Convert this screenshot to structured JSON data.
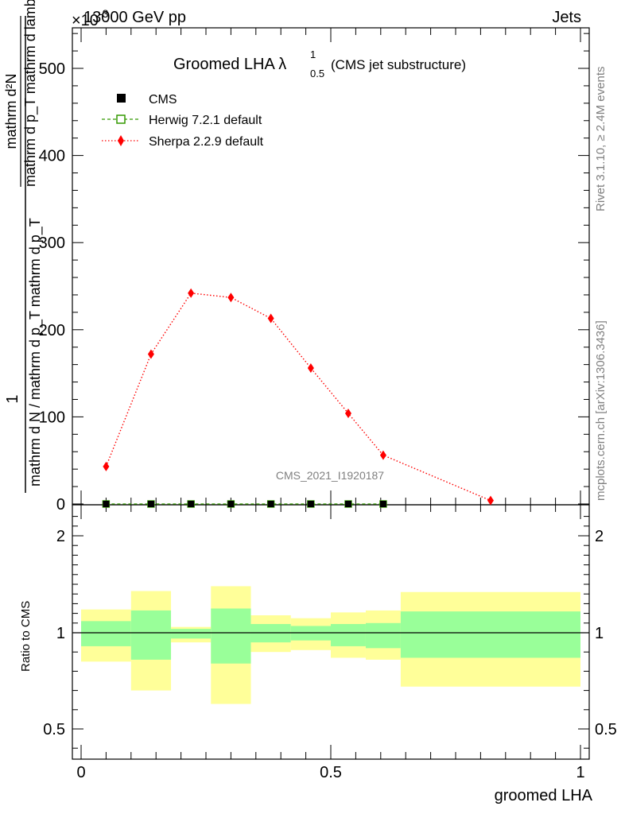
{
  "header": {
    "left": "13000 GeV pp",
    "right": "Jets",
    "scale_factor": "×10",
    "scale_exp": "-3"
  },
  "side_notes": {
    "rivet": "Rivet 3.1.10, ≥ 2.4M events",
    "mcplots": "mcplots.cern.ch [arXiv:1306.3436]"
  },
  "watermark": "CMS_2021_I1920187",
  "title": {
    "main": "Groomed LHA λ",
    "superscript": "1",
    "subscript": "0.5",
    "note": "(CMS jet substructure)"
  },
  "y_axis_label": {
    "numerator_lead": "1",
    "numerator_frac": "mathrm d N / mathrm d p_T mathrm d p_T",
    "fraction_line1_num": "mathrm d²N",
    "fraction_line1_den": "mathrm d p_T mathrm d lambda",
    "full": "1 / (mathrm d N / mathrm d p_T) · mathrm d²N / (mathrm d p_T mathrm d lambda)"
  },
  "ratio_y_label": "Ratio to CMS",
  "x_label": "groomed LHA",
  "colors": {
    "sherpa": "#ff0000",
    "herwig": "#339900",
    "cms": "#000000",
    "band_inner": "#99ff99",
    "band_outer": "#ffff99"
  },
  "chart_data": [
    {
      "type": "line",
      "panel": "main",
      "title": "Groomed LHA λ^1_0.5 (CMS jet substructure)",
      "xlabel": "groomed LHA",
      "ylabel": "1 / mathrm d N / mathrm d p_T mathrm d p_T · mathrm d²N / mathrm d p_T mathrm d lambda",
      "xlim": [
        0,
        1
      ],
      "ylim": [
        0,
        0.55
      ],
      "y_scale_factor": "×10^-3",
      "y_ticks": [
        0,
        100,
        200,
        300,
        400,
        500
      ],
      "legend_placement": "top-left",
      "series": [
        {
          "name": "CMS",
          "marker": "filled-square",
          "x": [
            0.05,
            0.14,
            0.22,
            0.3,
            0.38,
            0.46,
            0.535,
            0.605
          ],
          "y": [
            0.0,
            0.0,
            0.0,
            0.0,
            0.0,
            0.0,
            0.0,
            0.0
          ]
        },
        {
          "name": "Herwig 7.2.1 default",
          "marker": "open-square",
          "line": "dashed",
          "x": [
            0.05,
            0.14,
            0.22,
            0.3,
            0.38,
            0.46,
            0.535,
            0.605
          ],
          "y": [
            0.0,
            0.0,
            0.0,
            0.0,
            0.0,
            0.0,
            0.0,
            0.0
          ]
        },
        {
          "name": "Sherpa 2.2.9 default",
          "marker": "diamond",
          "line": "dotted",
          "x": [
            0.05,
            0.14,
            0.22,
            0.3,
            0.38,
            0.46,
            0.535,
            0.605,
            0.82
          ],
          "y": [
            0.043,
            0.172,
            0.242,
            0.237,
            0.213,
            0.156,
            0.104,
            0.056,
            0.004
          ]
        }
      ]
    },
    {
      "type": "area",
      "panel": "ratio",
      "ylabel": "Ratio to CMS",
      "xlabel": "groomed LHA",
      "xlim": [
        0,
        1
      ],
      "ylim": [
        0.35,
        2.3
      ],
      "y_ticks": [
        0.5,
        1,
        2
      ],
      "x_ticks": [
        0,
        0.5,
        1
      ],
      "reference_line": 1,
      "bins": [
        {
          "lo": 0.0,
          "hi": 0.1,
          "inner": [
            0.93,
            1.12
          ],
          "outer": [
            0.85,
            1.24
          ]
        },
        {
          "lo": 0.1,
          "hi": 0.18,
          "inner": [
            0.86,
            1.23
          ],
          "outer": [
            0.7,
            1.43
          ]
        },
        {
          "lo": 0.18,
          "hi": 0.26,
          "inner": [
            0.97,
            1.04
          ],
          "outer": [
            0.95,
            1.06
          ]
        },
        {
          "lo": 0.26,
          "hi": 0.34,
          "inner": [
            0.84,
            1.25
          ],
          "outer": [
            0.63,
            1.48
          ]
        },
        {
          "lo": 0.34,
          "hi": 0.42,
          "inner": [
            0.95,
            1.09
          ],
          "outer": [
            0.9,
            1.18
          ]
        },
        {
          "lo": 0.42,
          "hi": 0.5,
          "inner": [
            0.96,
            1.07
          ],
          "outer": [
            0.91,
            1.15
          ]
        },
        {
          "lo": 0.5,
          "hi": 0.57,
          "inner": [
            0.93,
            1.09
          ],
          "outer": [
            0.87,
            1.21
          ]
        },
        {
          "lo": 0.57,
          "hi": 0.64,
          "inner": [
            0.92,
            1.1
          ],
          "outer": [
            0.86,
            1.23
          ]
        },
        {
          "lo": 0.64,
          "hi": 1.0,
          "inner": [
            0.87,
            1.22
          ],
          "outer": [
            0.72,
            1.42
          ]
        }
      ]
    }
  ]
}
